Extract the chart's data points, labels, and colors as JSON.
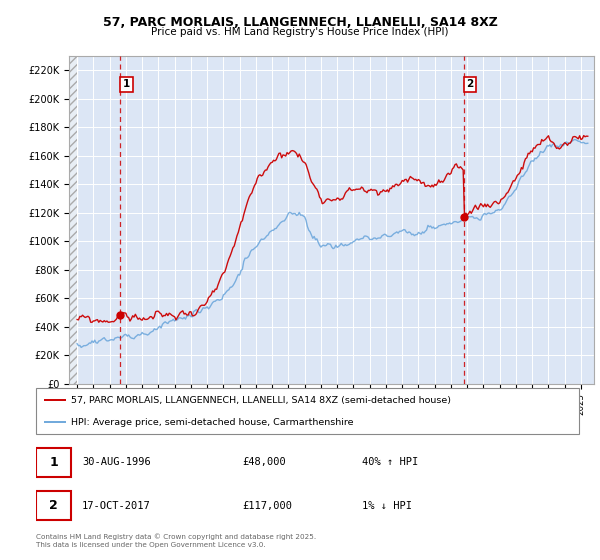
{
  "title": "57, PARC MORLAIS, LLANGENNECH, LLANELLI, SA14 8XZ",
  "subtitle": "Price paid vs. HM Land Registry's House Price Index (HPI)",
  "ylim": [
    0,
    230000
  ],
  "yticks": [
    0,
    20000,
    40000,
    60000,
    80000,
    100000,
    120000,
    140000,
    160000,
    180000,
    200000,
    220000
  ],
  "ytick_labels": [
    "£0",
    "£20K",
    "£40K",
    "£60K",
    "£80K",
    "£100K",
    "£120K",
    "£140K",
    "£160K",
    "£180K",
    "£200K",
    "£220K"
  ],
  "xstart": 1994.0,
  "xend": 2025.5,
  "transaction1_date": 1996.66,
  "transaction1_price": 48000,
  "transaction1_label": "1",
  "transaction2_date": 2017.79,
  "transaction2_price": 117000,
  "transaction2_label": "2",
  "legend_line1": "57, PARC MORLAIS, LLANGENNECH, LLANELLI, SA14 8XZ (semi-detached house)",
  "legend_line2": "HPI: Average price, semi-detached house, Carmarthenshire",
  "table_row1": [
    "1",
    "30-AUG-1996",
    "£48,000",
    "40% ↑ HPI"
  ],
  "table_row2": [
    "2",
    "17-OCT-2017",
    "£117,000",
    "1% ↓ HPI"
  ],
  "footnote": "Contains HM Land Registry data © Crown copyright and database right 2025.\nThis data is licensed under the Open Government Licence v3.0.",
  "red_color": "#cc0000",
  "blue_color": "#6fa8dc",
  "plot_bg_color": "#dce6f5",
  "hatch_color": "#c8d0dc"
}
